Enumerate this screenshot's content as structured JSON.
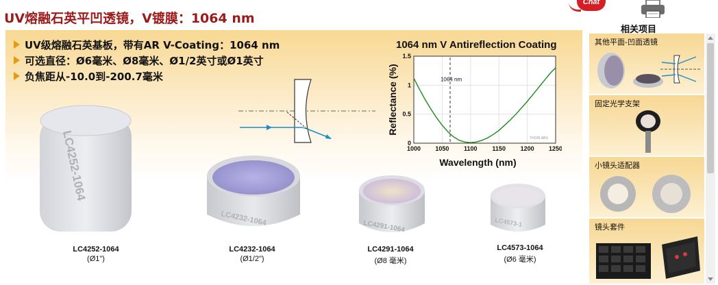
{
  "page_title": "UV熔融石英平凹透镜，V镀膜：1064 nm",
  "chat_label": "Chat",
  "related_title": "相关项目",
  "bullets": [
    "UV级熔融石英基板，带有AR V-Coating：1064 nm",
    "可选直径：Ø6毫米、Ø8毫米、Ø1/2英寸或Ø1英寸",
    "负焦距从-10.0到-200.7毫米"
  ],
  "products": [
    {
      "code": "LC4252-1064",
      "size": "(Ø1\")",
      "engraving": "LC4252-1064"
    },
    {
      "code": "LC4232-1064",
      "size": "(Ø1/2\")",
      "engraving": "LC4232-1064"
    },
    {
      "code": "LC4291-1064",
      "size": "(Ø8 毫米)",
      "engraving": "LC4291-1064"
    },
    {
      "code": "LC4573-1064",
      "size": "(Ø6 毫米)",
      "engraving": "LC4573-1"
    }
  ],
  "related_items": [
    {
      "label": "其他平面-凹面透镜"
    },
    {
      "label": "固定光学支架"
    },
    {
      "label": "小镜头适配器"
    },
    {
      "label": "镜头套件"
    }
  ],
  "chart_data": {
    "type": "line",
    "title": "1064 nm V Antireflection Coating",
    "xlabel": "Wavelength (nm)",
    "ylabel": "Reflectance (%)",
    "xlim": [
      1000,
      1250
    ],
    "ylim": [
      0,
      1.5
    ],
    "x_ticks": [
      1000,
      1050,
      1100,
      1150,
      1200,
      1250
    ],
    "y_ticks": [
      0,
      0.5,
      1,
      1.5
    ],
    "annotation": {
      "x": 1064,
      "label": "1064 nm"
    },
    "watermark": "THORLABS",
    "grid": true,
    "series": [
      {
        "color": "#1d8a1d",
        "x": [
          1000,
          1010,
          1020,
          1030,
          1040,
          1050,
          1060,
          1064,
          1070,
          1080,
          1090,
          1100,
          1110,
          1120,
          1130,
          1140,
          1150,
          1160,
          1170,
          1180,
          1190,
          1200,
          1210,
          1220,
          1230,
          1240,
          1250
        ],
        "y": [
          1.12,
          0.93,
          0.75,
          0.59,
          0.44,
          0.31,
          0.2,
          0.16,
          0.11,
          0.05,
          0.02,
          0.01,
          0.02,
          0.05,
          0.09,
          0.15,
          0.22,
          0.31,
          0.4,
          0.5,
          0.61,
          0.72,
          0.84,
          0.96,
          1.08,
          1.2,
          1.3
        ]
      }
    ]
  }
}
